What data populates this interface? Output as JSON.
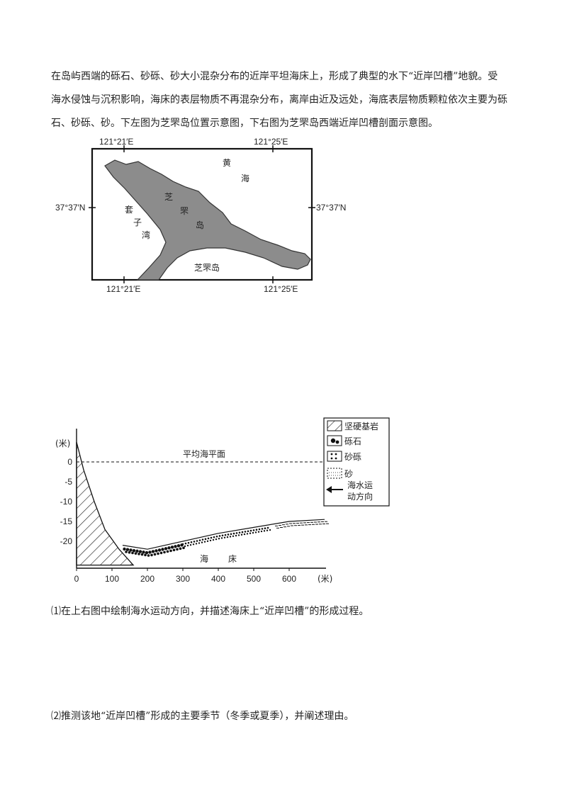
{
  "intro": {
    "line1": "在岛屿西端的砾石、砂砾、砂大小混杂分布的近岸平坦海床上，形成了典型的水下“近岸凹槽”地貌。受",
    "line2": "海水侵蚀与沉积影响，海床的表层物质不再混杂分布，离岸由近及远处，海底表层物质颗粒依次主要为砾",
    "line3": "石、砂砾、砂。下左图为芝罘岛位置示意图，下右图为芝罘岛西端近岸凹槽剖面示意图。"
  },
  "map": {
    "lon_top_left": "121°21′E",
    "lon_top_right": "121°25′E",
    "lon_bottom_left": "121°21′E",
    "lon_bottom_right": "121°25′E",
    "lat_left": "37°37′N",
    "lat_right": "37°37′N",
    "sea_label_1": "黄",
    "sea_label_2": "海",
    "bay_label_1": "套",
    "bay_label_2": "子",
    "bay_label_3": "湾",
    "island_label_1": "芝",
    "island_label_2": "罘",
    "island_label_3": "岛",
    "island_bottom_label": "芝罘岛"
  },
  "chart_data": {
    "type": "area",
    "ylabel": "(米)",
    "xunit": "(米)",
    "x_ticks": [
      "0",
      "100",
      "200",
      "300",
      "400",
      "500",
      "600"
    ],
    "y_ticks": [
      "0",
      "-5",
      "-10",
      "-15",
      "-20"
    ],
    "sea_level_label": "平均海平面",
    "seabed_label_1": "海",
    "seabed_label_2": "床",
    "bedrock_profile": [
      [
        0,
        5
      ],
      [
        20,
        -2
      ],
      [
        50,
        -10
      ],
      [
        80,
        -17
      ],
      [
        120,
        -22
      ],
      [
        160,
        -26
      ]
    ],
    "seabed_profile": [
      [
        130,
        -21
      ],
      [
        200,
        -22
      ],
      [
        300,
        -20
      ],
      [
        400,
        -18
      ],
      [
        500,
        -16.5
      ],
      [
        600,
        -15
      ],
      [
        700,
        -14.5
      ]
    ],
    "legend": {
      "bedrock": "坚硬基岩",
      "gravel": "砾石",
      "sandy_gravel": "砂砾",
      "sand": "砂",
      "arrow_line1": "海水运",
      "arrow_line2": "动方向"
    }
  },
  "questions": {
    "q1": "⑴在上右图中绘制海水运动方向，并描述海床上“近岸凹槽”的形成过程。",
    "q2": "⑵推测该地“近岸凹槽”形成的主要季节（冬季或夏季），并阐述理由。"
  }
}
